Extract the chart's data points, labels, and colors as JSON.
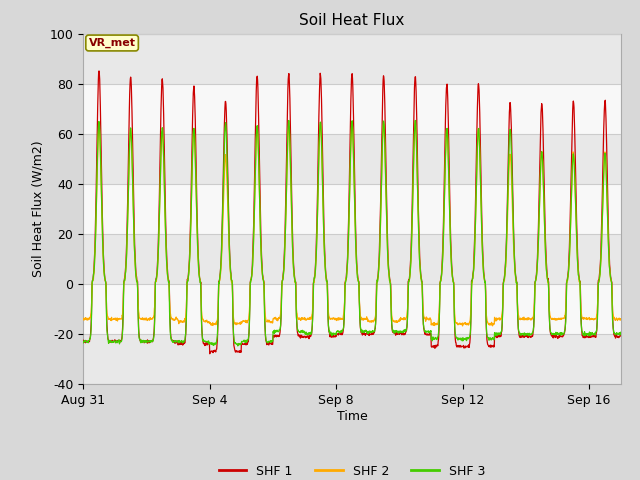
{
  "title": "Soil Heat Flux",
  "xlabel": "Time",
  "ylabel": "Soil Heat Flux (W/m2)",
  "ylim": [
    -40,
    100
  ],
  "yticks": [
    -40,
    -20,
    0,
    20,
    40,
    60,
    80,
    100
  ],
  "xlim_start": 0,
  "xlim_end": 17,
  "xtick_labels": [
    "Aug 31",
    "Sep 4",
    "Sep 8",
    "Sep 12",
    "Sep 16"
  ],
  "xtick_positions": [
    0,
    4,
    8,
    12,
    16
  ],
  "colors": {
    "SHF1": "#cc0000",
    "SHF2": "#ffaa00",
    "SHF3": "#44cc00"
  },
  "legend_label": "VR_met",
  "fig_bg_color": "#d8d8d8",
  "plot_bg_color": "#ffffff",
  "band_colors": [
    "#e8e8e8",
    "#f8f8f8"
  ],
  "series_names": [
    "SHF 1",
    "SHF 2",
    "SHF 3"
  ]
}
